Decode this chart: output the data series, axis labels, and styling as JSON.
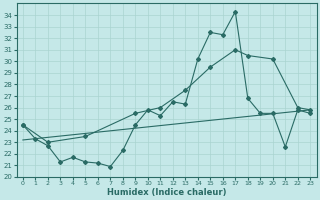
{
  "xlabel": "Humidex (Indice chaleur)",
  "bg_color": "#c5e8e8",
  "line_color": "#2a6b65",
  "grid_color": "#aad4d0",
  "xlim": [
    -0.5,
    23.5
  ],
  "ylim": [
    20,
    35
  ],
  "yticks": [
    20,
    21,
    22,
    23,
    24,
    25,
    26,
    27,
    28,
    29,
    30,
    31,
    32,
    33,
    34
  ],
  "xticks": [
    0,
    1,
    2,
    3,
    4,
    5,
    6,
    7,
    8,
    9,
    10,
    11,
    12,
    13,
    14,
    15,
    16,
    17,
    18,
    19,
    20,
    21,
    22,
    23
  ],
  "main_x": [
    0,
    1,
    2,
    3,
    4,
    5,
    6,
    7,
    8,
    9,
    10,
    11,
    12,
    13,
    14,
    15,
    16,
    17,
    18,
    19,
    20,
    21,
    22,
    23
  ],
  "main_y": [
    24.5,
    23.3,
    22.7,
    21.3,
    21.7,
    21.3,
    21.2,
    20.9,
    22.3,
    24.5,
    25.8,
    25.3,
    26.5,
    26.3,
    30.2,
    32.5,
    32.3,
    34.3,
    26.8,
    25.5,
    25.5,
    22.6,
    25.8,
    25.5
  ],
  "line2_x": [
    0,
    2,
    5,
    9,
    11,
    13,
    15,
    17,
    18,
    20,
    22,
    23
  ],
  "line2_y": [
    24.5,
    23.0,
    23.5,
    25.5,
    26.0,
    27.5,
    29.5,
    31.0,
    30.5,
    30.2,
    26.0,
    25.8
  ],
  "line3_x": [
    0,
    23
  ],
  "line3_y": [
    23.2,
    25.8
  ]
}
